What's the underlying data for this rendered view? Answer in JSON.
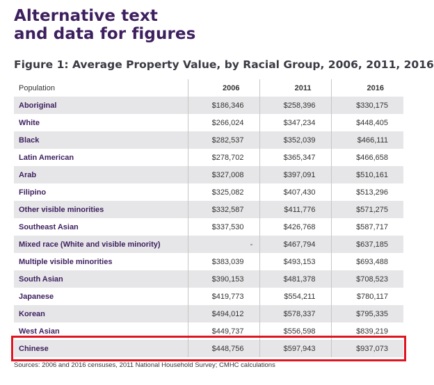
{
  "header": {
    "title_line1": "Alternative text",
    "title_line2": "and data for figures"
  },
  "figure": {
    "title": "Figure 1: Average Property Value, by Racial Group, 2006, 2011, 2016"
  },
  "table": {
    "columns": [
      "Population",
      "2006",
      "2011",
      "2016"
    ],
    "rows": [
      {
        "name": "Aboriginal",
        "v2006": "$186,346",
        "v2011": "$258,396",
        "v2016": "$330,175"
      },
      {
        "name": "White",
        "v2006": "$266,024",
        "v2011": "$347,234",
        "v2016": "$448,405"
      },
      {
        "name": "Black",
        "v2006": "$282,537",
        "v2011": "$352,039",
        "v2016": "$466,111"
      },
      {
        "name": "Latin American",
        "v2006": "$278,702",
        "v2011": "$365,347",
        "v2016": "$466,658"
      },
      {
        "name": "Arab",
        "v2006": "$327,008",
        "v2011": "$397,091",
        "v2016": "$510,161"
      },
      {
        "name": "Filipino",
        "v2006": "$325,082",
        "v2011": "$407,430",
        "v2016": "$513,296"
      },
      {
        "name": "Other visible minorities",
        "v2006": "$332,587",
        "v2011": "$411,776",
        "v2016": "$571,275"
      },
      {
        "name": "Southeast Asian",
        "v2006": "$337,530",
        "v2011": "$426,768",
        "v2016": "$587,717"
      },
      {
        "name": "Mixed race (White and visible minority)",
        "v2006": "-",
        "v2011": "$467,794",
        "v2016": "$637,185"
      },
      {
        "name": "Multiple visible minorities",
        "v2006": "$383,039",
        "v2011": "$493,153",
        "v2016": "$693,488"
      },
      {
        "name": "South Asian",
        "v2006": "$390,153",
        "v2011": "$481,378",
        "v2016": "$708,523"
      },
      {
        "name": "Japanese",
        "v2006": "$419,773",
        "v2011": "$554,211",
        "v2016": "$780,117"
      },
      {
        "name": "Korean",
        "v2006": "$494,012",
        "v2011": "$578,337",
        "v2016": "$795,335"
      },
      {
        "name": "West Asian",
        "v2006": "$449,737",
        "v2011": "$556,598",
        "v2016": "$839,219"
      },
      {
        "name": "Chinese",
        "v2006": "$448,756",
        "v2011": "$597,943",
        "v2016": "$937,073"
      }
    ],
    "highlighted_row": "Chinese"
  },
  "footer": {
    "sources": "Sources: 2006 and 2016 censuses, 2011 National Household Survey; CMHC calculations"
  },
  "colors": {
    "title": "#3d1f5e",
    "row_shade": "#e6e6e8",
    "highlight": "#e0141f"
  }
}
